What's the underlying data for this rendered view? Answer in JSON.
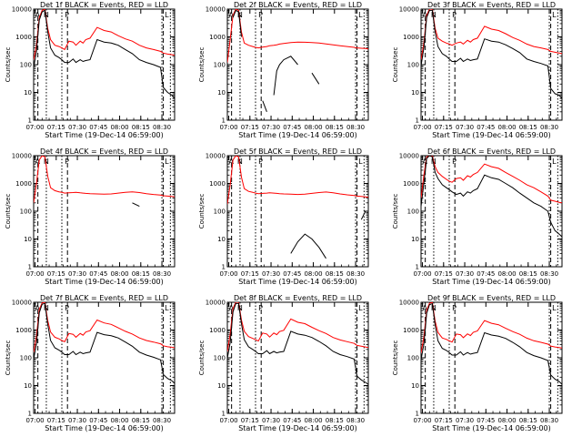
{
  "figure": {
    "colors": {
      "events": "#000000",
      "lld": "#ff0000",
      "axis": "#000000",
      "background": "#ffffff"
    },
    "shared": {
      "ylabel": "Counts/sec",
      "xlabel": "Start Time (19-Dec-14 06:59:00)",
      "x_ticks": [
        "07:00",
        "07:15",
        "07:30",
        "07:45",
        "08:00",
        "08:15",
        "08:30"
      ],
      "y_ticks": [
        "1",
        "10",
        "100",
        "1000",
        "10000"
      ],
      "x_range_minutes": [
        0,
        100
      ],
      "y_log_range": [
        0,
        4
      ],
      "markers": {
        "dotted_minutes": [
          9,
          20,
          91,
          97
        ],
        "dashed_minutes": [
          3,
          24,
          92
        ],
        "region_letters": [
          "A",
          "N",
          "P",
          "L"
        ]
      }
    }
  },
  "chart_data": [
    {
      "type": "line",
      "title": "Det 1f BLACK = Events, RED = LLD",
      "xlabel": "Start Time (19-Dec-14 06:59:00)",
      "ylabel": "Counts/sec",
      "yscale": "log",
      "x": [
        0,
        2,
        4,
        6,
        8,
        10,
        12,
        15,
        18,
        20,
        22,
        25,
        28,
        30,
        33,
        35,
        37,
        40,
        45,
        50,
        55,
        60,
        65,
        70,
        75,
        80,
        85,
        90,
        92,
        95,
        98,
        100
      ],
      "series": [
        {
          "name": "LLD",
          "values": [
            150,
            500,
            5000,
            9000,
            10000,
            2000,
            800,
            500,
            450,
            400,
            350,
            700,
            650,
            500,
            700,
            600,
            800,
            900,
            2200,
            1700,
            1500,
            1100,
            850,
            700,
            500,
            400,
            350,
            300,
            260,
            240,
            230,
            220
          ]
        },
        {
          "name": "Events",
          "values": [
            80,
            300,
            4000,
            8000,
            9000,
            1500,
            400,
            220,
            180,
            150,
            120,
            120,
            160,
            120,
            150,
            130,
            140,
            150,
            800,
            650,
            600,
            500,
            350,
            250,
            150,
            120,
            100,
            80,
            15,
            10,
            8,
            6
          ]
        }
      ]
    },
    {
      "type": "line",
      "title": "Det 2f BLACK = Events, RED = LLD",
      "xlabel": "Start Time (19-Dec-14 06:59:00)",
      "ylabel": "Counts/sec",
      "yscale": "log",
      "x": [
        0,
        2,
        4,
        6,
        8,
        10,
        12,
        15,
        18,
        20,
        22,
        25,
        28,
        30,
        33,
        35,
        37,
        40,
        45,
        50,
        55,
        60,
        65,
        70,
        75,
        80,
        85,
        90,
        92,
        95,
        98,
        100
      ],
      "series": [
        {
          "name": "LLD",
          "values": [
            120,
            800,
            6000,
            10000,
            9000,
            1500,
            600,
            500,
            450,
            420,
            400,
            430,
            450,
            480,
            500,
            520,
            550,
            580,
            620,
            650,
            640,
            620,
            600,
            560,
            520,
            480,
            450,
            420,
            400,
            390,
            380,
            370
          ]
        },
        {
          "name": "Events",
          "values": [
            null,
            null,
            5000,
            9000,
            8000,
            1000,
            null,
            null,
            null,
            null,
            null,
            5,
            2,
            null,
            8,
            60,
            100,
            150,
            200,
            100,
            null,
            50,
            20,
            null,
            null,
            null,
            null,
            null,
            null,
            null,
            null,
            null
          ]
        }
      ]
    },
    {
      "type": "line",
      "title": "Det 3f BLACK = Events, RED = LLD",
      "xlabel": "Start Time (19-Dec-14 06:59:00)",
      "ylabel": "Counts/sec",
      "yscale": "log",
      "x": [
        0,
        2,
        4,
        6,
        8,
        10,
        12,
        15,
        18,
        20,
        22,
        25,
        28,
        30,
        33,
        35,
        37,
        40,
        45,
        50,
        55,
        60,
        65,
        70,
        75,
        80,
        85,
        90,
        92,
        95,
        98,
        100
      ],
      "series": [
        {
          "name": "LLD",
          "values": [
            150,
            600,
            6000,
            10000,
            10000,
            2000,
            900,
            700,
            600,
            550,
            500,
            600,
            650,
            550,
            750,
            650,
            800,
            900,
            2400,
            1900,
            1700,
            1300,
            950,
            750,
            550,
            450,
            400,
            350,
            300,
            280,
            260,
            250
          ]
        },
        {
          "name": "Events",
          "values": [
            90,
            400,
            5000,
            9000,
            9000,
            1500,
            450,
            250,
            200,
            160,
            130,
            130,
            170,
            130,
            160,
            140,
            150,
            160,
            850,
            700,
            650,
            520,
            380,
            270,
            160,
            130,
            110,
            90,
            14,
            9,
            8,
            6
          ]
        }
      ]
    },
    {
      "type": "line",
      "title": "Det 4f BLACK = Events, RED = LLD",
      "xlabel": "Start Time (19-Dec-14 06:59:00)",
      "ylabel": "Counts/sec",
      "yscale": "log",
      "x": [
        0,
        2,
        4,
        6,
        8,
        10,
        12,
        15,
        18,
        20,
        22,
        25,
        28,
        30,
        33,
        35,
        37,
        40,
        45,
        50,
        55,
        60,
        65,
        70,
        75,
        80,
        85,
        90,
        92,
        95,
        98,
        100
      ],
      "series": [
        {
          "name": "LLD",
          "values": [
            200,
            1000,
            7000,
            10000,
            9000,
            1800,
            700,
            550,
            500,
            480,
            450,
            460,
            470,
            480,
            460,
            450,
            440,
            430,
            420,
            410,
            420,
            450,
            480,
            500,
            470,
            430,
            400,
            380,
            360,
            350,
            340,
            330
          ]
        },
        {
          "name": "Events",
          "values": [
            null,
            null,
            null,
            null,
            null,
            null,
            null,
            null,
            null,
            null,
            null,
            null,
            null,
            null,
            null,
            null,
            null,
            null,
            null,
            null,
            null,
            null,
            null,
            200,
            150,
            null,
            null,
            null,
            null,
            null,
            null,
            null
          ]
        }
      ]
    },
    {
      "type": "line",
      "title": "Det 5f BLACK = Events, RED = LLD",
      "xlabel": "Start Time (19-Dec-14 06:59:00)",
      "ylabel": "Counts/sec",
      "yscale": "log",
      "x": [
        0,
        2,
        4,
        6,
        8,
        10,
        12,
        15,
        18,
        20,
        22,
        25,
        28,
        30,
        33,
        35,
        37,
        40,
        45,
        50,
        55,
        60,
        65,
        70,
        75,
        80,
        85,
        90,
        92,
        95,
        98,
        100
      ],
      "series": [
        {
          "name": "LLD",
          "values": [
            180,
            900,
            7000,
            10000,
            9000,
            1700,
            650,
            520,
            480,
            450,
            430,
            440,
            450,
            460,
            450,
            440,
            430,
            420,
            410,
            400,
            410,
            440,
            470,
            490,
            460,
            420,
            390,
            370,
            350,
            340,
            330,
            320
          ]
        },
        {
          "name": "Events",
          "values": [
            null,
            null,
            null,
            null,
            null,
            null,
            null,
            null,
            null,
            null,
            null,
            null,
            null,
            null,
            null,
            null,
            null,
            null,
            3,
            8,
            15,
            10,
            5,
            2,
            null,
            null,
            null,
            null,
            null,
            50,
            100,
            null
          ]
        }
      ]
    },
    {
      "type": "line",
      "title": "Det 6f BLACK = Events, RED = LLD",
      "xlabel": "Start Time (19-Dec-14 06:59:00)",
      "ylabel": "Counts/sec",
      "yscale": "log",
      "x": [
        0,
        2,
        4,
        6,
        8,
        10,
        12,
        15,
        18,
        20,
        22,
        25,
        28,
        30,
        33,
        35,
        37,
        40,
        45,
        50,
        55,
        60,
        65,
        70,
        75,
        80,
        85,
        90,
        92,
        95,
        98,
        100
      ],
      "series": [
        {
          "name": "LLD",
          "values": [
            300,
            2000,
            9000,
            10000,
            10000,
            4000,
            2500,
            1800,
            1400,
            1200,
            1100,
            1500,
            1600,
            1300,
            1900,
            1700,
            2100,
            2500,
            5000,
            4000,
            3500,
            2500,
            1800,
            1300,
            900,
            700,
            500,
            350,
            250,
            230,
            210,
            200
          ]
        },
        {
          "name": "Events",
          "values": [
            150,
            1000,
            8000,
            10000,
            9000,
            2500,
            1500,
            900,
            700,
            600,
            500,
            400,
            450,
            350,
            500,
            450,
            550,
            650,
            2000,
            1600,
            1400,
            1000,
            700,
            450,
            300,
            200,
            150,
            100,
            40,
            20,
            15,
            12
          ]
        }
      ]
    },
    {
      "type": "line",
      "title": "Det 7f BLACK = Events, RED = LLD",
      "xlabel": "Start Time (19-Dec-14 06:59:00)",
      "ylabel": "Counts/sec",
      "yscale": "log",
      "x": [
        0,
        2,
        4,
        6,
        8,
        10,
        12,
        15,
        18,
        20,
        22,
        25,
        28,
        30,
        33,
        35,
        37,
        40,
        45,
        50,
        55,
        60,
        65,
        70,
        75,
        80,
        85,
        90,
        92,
        95,
        98,
        100
      ],
      "series": [
        {
          "name": "LLD",
          "values": [
            160,
            600,
            5500,
            9500,
            10000,
            2200,
            850,
            550,
            480,
            420,
            380,
            750,
            700,
            550,
            750,
            650,
            850,
            950,
            2300,
            1800,
            1600,
            1200,
            900,
            720,
            520,
            420,
            370,
            320,
            270,
            250,
            240,
            230
          ]
        },
        {
          "name": "Events",
          "values": [
            90,
            320,
            4200,
            8500,
            9000,
            1600,
            420,
            230,
            190,
            160,
            130,
            130,
            170,
            130,
            160,
            140,
            150,
            160,
            820,
            680,
            620,
            520,
            370,
            260,
            160,
            125,
            105,
            85,
            25,
            18,
            15,
            12
          ]
        }
      ]
    },
    {
      "type": "line",
      "title": "Det 8f BLACK = Events, RED = LLD",
      "xlabel": "Start Time (19-Dec-14 06:59:00)",
      "ylabel": "Counts/sec",
      "yscale": "log",
      "x": [
        0,
        2,
        4,
        6,
        8,
        10,
        12,
        15,
        18,
        20,
        22,
        25,
        28,
        30,
        33,
        35,
        37,
        40,
        45,
        50,
        55,
        60,
        65,
        70,
        75,
        80,
        85,
        90,
        92,
        95,
        98,
        100
      ],
      "series": [
        {
          "name": "LLD",
          "values": [
            170,
            700,
            6000,
            10000,
            10000,
            2300,
            900,
            580,
            500,
            450,
            400,
            780,
            720,
            560,
            780,
            680,
            880,
            980,
            2500,
            1900,
            1700,
            1250,
            950,
            750,
            540,
            440,
            380,
            330,
            280,
            260,
            245,
            235
          ]
        },
        {
          "name": "Events",
          "values": [
            95,
            350,
            4500,
            9000,
            9000,
            1700,
            450,
            250,
            200,
            170,
            140,
            140,
            180,
            140,
            170,
            150,
            160,
            170,
            900,
            720,
            650,
            540,
            390,
            270,
            170,
            130,
            110,
            90,
            22,
            16,
            13,
            11
          ]
        }
      ]
    },
    {
      "type": "line",
      "title": "Det 9f BLACK = Events, RED = LLD",
      "xlabel": "Start Time (19-Dec-14 06:59:00)",
      "ylabel": "Counts/sec",
      "yscale": "log",
      "x": [
        0,
        2,
        4,
        6,
        8,
        10,
        12,
        15,
        18,
        20,
        22,
        25,
        28,
        30,
        33,
        35,
        37,
        40,
        45,
        50,
        55,
        60,
        65,
        70,
        75,
        80,
        85,
        90,
        92,
        95,
        98,
        100
      ],
      "series": [
        {
          "name": "LLD",
          "values": [
            150,
            550,
            5200,
            9200,
            9800,
            2100,
            820,
            520,
            460,
            410,
            370,
            720,
            680,
            530,
            730,
            630,
            830,
            930,
            2200,
            1750,
            1550,
            1150,
            880,
            700,
            510,
            410,
            360,
            310,
            265,
            245,
            235,
            225
          ]
        },
        {
          "name": "Events",
          "values": [
            85,
            310,
            4000,
            8200,
            8800,
            1550,
            410,
            220,
            185,
            155,
            125,
            125,
            165,
            125,
            155,
            135,
            145,
            155,
            800,
            660,
            600,
            500,
            360,
            250,
            155,
            120,
            100,
            80,
            24,
            17,
            14,
            11
          ]
        }
      ]
    }
  ]
}
